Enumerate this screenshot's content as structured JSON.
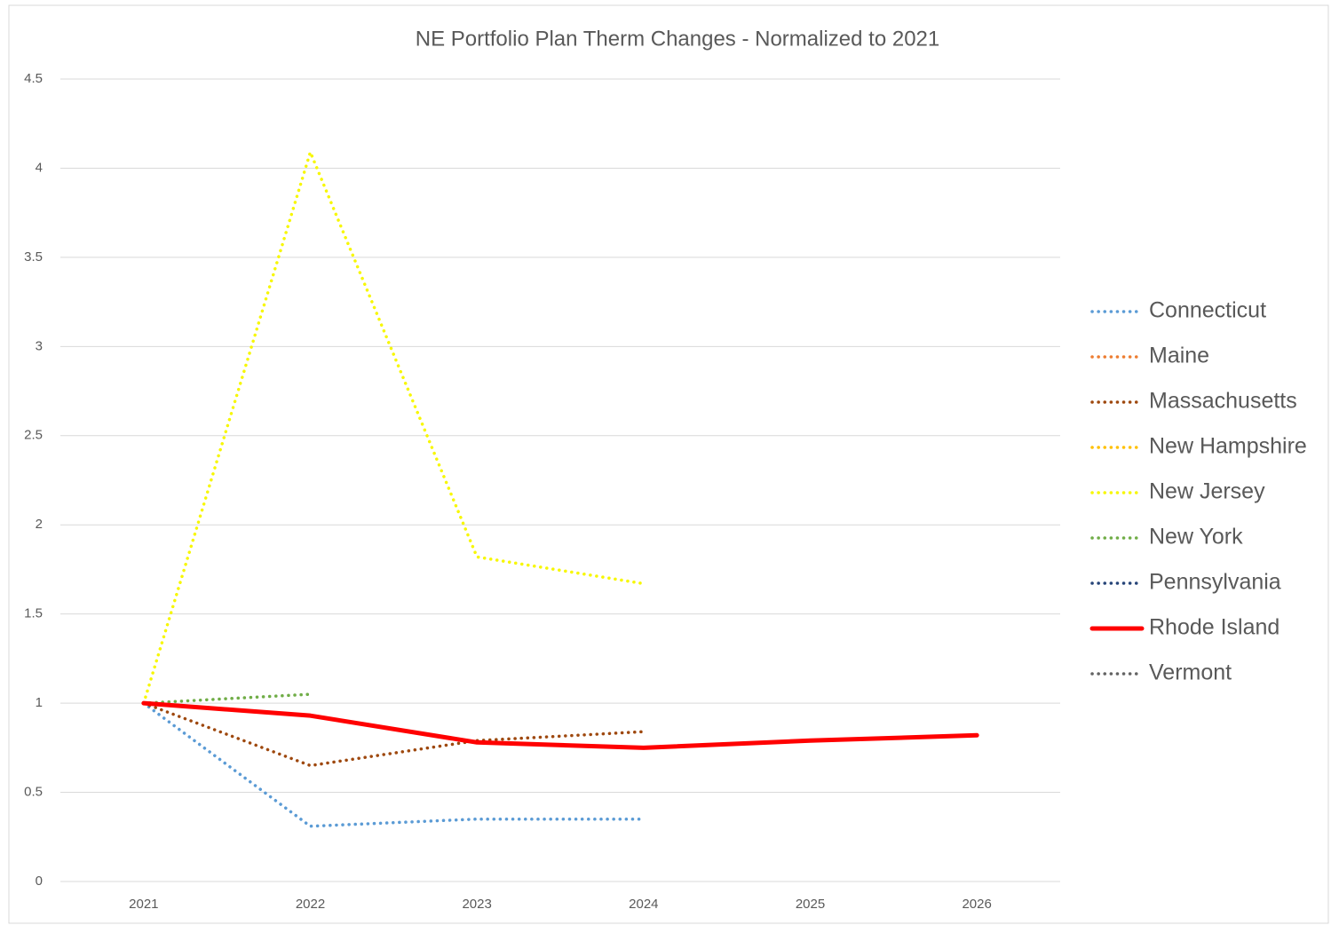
{
  "chart_data": {
    "type": "line",
    "title": "NE Portfolio Plan Therm Changes - Normalized to 2021",
    "categories": [
      "2021",
      "2022",
      "2023",
      "2024",
      "2025",
      "2026"
    ],
    "series": [
      {
        "name": "Connecticut",
        "color": "#5b9bd5",
        "style": "dotted",
        "values": [
          1,
          0.31,
          0.35,
          0.35,
          null,
          null
        ]
      },
      {
        "name": "Maine",
        "color": "#ed7d31",
        "style": "dotted",
        "values": [
          null,
          null,
          null,
          null,
          null,
          null
        ]
      },
      {
        "name": "Massachusetts",
        "color": "#9e480e",
        "style": "dotted",
        "values": [
          1,
          0.65,
          0.79,
          0.84,
          null,
          null
        ]
      },
      {
        "name": "New Hampshire",
        "color": "#ffc000",
        "style": "dotted",
        "values": [
          null,
          null,
          null,
          null,
          null,
          null
        ]
      },
      {
        "name": "New Jersey",
        "color": "#f7f700",
        "style": "dotted",
        "values": [
          1,
          4.09,
          1.82,
          1.67,
          null,
          null
        ]
      },
      {
        "name": "New York",
        "color": "#70ad47",
        "style": "dotted",
        "values": [
          1,
          1.05,
          null,
          null,
          null,
          null
        ]
      },
      {
        "name": "Pennsylvania",
        "color": "#264478",
        "style": "dotted",
        "values": [
          null,
          null,
          null,
          null,
          null,
          null
        ]
      },
      {
        "name": "Rhode Island",
        "color": "#ff0000",
        "style": "solid",
        "values": [
          1,
          0.93,
          0.78,
          0.75,
          0.79,
          0.82
        ]
      },
      {
        "name": "Vermont",
        "color": "#636363",
        "style": "dotted",
        "values": [
          null,
          null,
          null,
          null,
          null,
          null
        ]
      }
    ],
    "ylim": [
      0,
      4.5
    ],
    "yticks": [
      0,
      0.5,
      1,
      1.5,
      2,
      2.5,
      3,
      3.5,
      4,
      4.5
    ],
    "grid": true,
    "legend": "right"
  }
}
